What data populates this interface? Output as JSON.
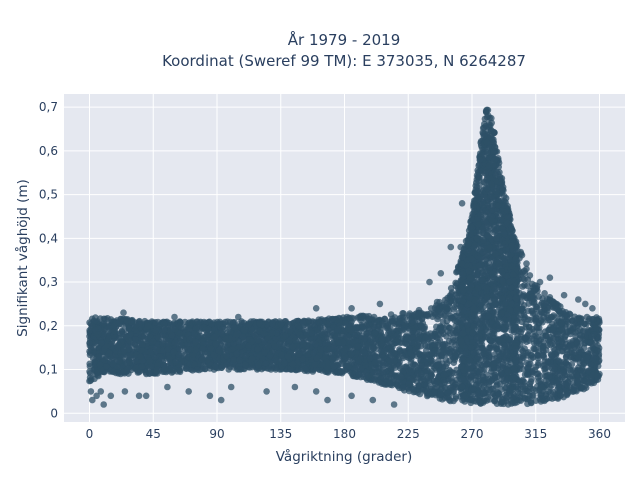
{
  "chart_data": {
    "type": "scatter",
    "title": "År 1979 - 2019",
    "subtitle": "Koordinat (Sweref 99 TM): E 373035, N 6264287",
    "xlabel": "Vågriktning (grader)",
    "ylabel": "Signifikant våghöjd (m)",
    "xlim": [
      -18,
      378
    ],
    "ylim": [
      -0.02,
      0.73
    ],
    "xticks": [
      0,
      45,
      90,
      135,
      180,
      225,
      270,
      315,
      360
    ],
    "xtick_labels": [
      "0",
      "45",
      "90",
      "135",
      "180",
      "225",
      "270",
      "315",
      "360"
    ],
    "yticks": [
      0,
      0.1,
      0.2,
      0.3,
      0.4,
      0.5,
      0.6,
      0.7
    ],
    "ytick_labels": [
      "0",
      "0,1",
      "0,2",
      "0,3",
      "0,4",
      "0,5",
      "0,6",
      "0,7"
    ],
    "grid": true,
    "legend": "none",
    "marker_color": "#2d5067",
    "background_color": "#e5e8f0",
    "series": [
      {
        "envelope": {
          "x": [
            0,
            10,
            45,
            90,
            135,
            180,
            225,
            250,
            262,
            270,
            276,
            280,
            284,
            290,
            300,
            315,
            330,
            345,
            360
          ],
          "y_low": [
            0.07,
            0.09,
            0.09,
            0.1,
            0.1,
            0.09,
            0.05,
            0.03,
            0.02,
            0.02,
            0.02,
            0.02,
            0.02,
            0.02,
            0.02,
            0.02,
            0.03,
            0.05,
            0.07
          ],
          "y_high": [
            0.22,
            0.22,
            0.21,
            0.21,
            0.21,
            0.22,
            0.23,
            0.26,
            0.35,
            0.45,
            0.62,
            0.7,
            0.68,
            0.56,
            0.4,
            0.3,
            0.25,
            0.22,
            0.22
          ]
        },
        "sparse_points": [
          [
            2,
            0.03
          ],
          [
            5,
            0.04
          ],
          [
            8,
            0.05
          ],
          [
            10,
            0.02
          ],
          [
            15,
            0.04
          ],
          [
            25,
            0.05
          ],
          [
            35,
            0.04
          ],
          [
            40,
            0.04
          ],
          [
            55,
            0.06
          ],
          [
            70,
            0.05
          ],
          [
            85,
            0.04
          ],
          [
            93,
            0.03
          ],
          [
            100,
            0.06
          ],
          [
            125,
            0.05
          ],
          [
            145,
            0.06
          ],
          [
            160,
            0.05
          ],
          [
            168,
            0.03
          ],
          [
            185,
            0.04
          ],
          [
            200,
            0.03
          ],
          [
            215,
            0.02
          ],
          [
            24,
            0.23
          ],
          [
            60,
            0.22
          ],
          [
            105,
            0.22
          ],
          [
            160,
            0.24
          ],
          [
            185,
            0.24
          ],
          [
            205,
            0.25
          ],
          [
            240,
            0.3
          ],
          [
            248,
            0.32
          ],
          [
            255,
            0.38
          ],
          [
            262,
            0.38
          ],
          [
            263,
            0.48
          ],
          [
            318,
            0.3
          ],
          [
            325,
            0.31
          ],
          [
            335,
            0.27
          ],
          [
            345,
            0.26
          ],
          [
            350,
            0.25
          ],
          [
            355,
            0.24
          ],
          [
            4,
            0.19
          ],
          [
            6,
            0.18
          ],
          [
            3,
            0.15
          ],
          [
            1,
            0.05
          ]
        ]
      }
    ]
  }
}
